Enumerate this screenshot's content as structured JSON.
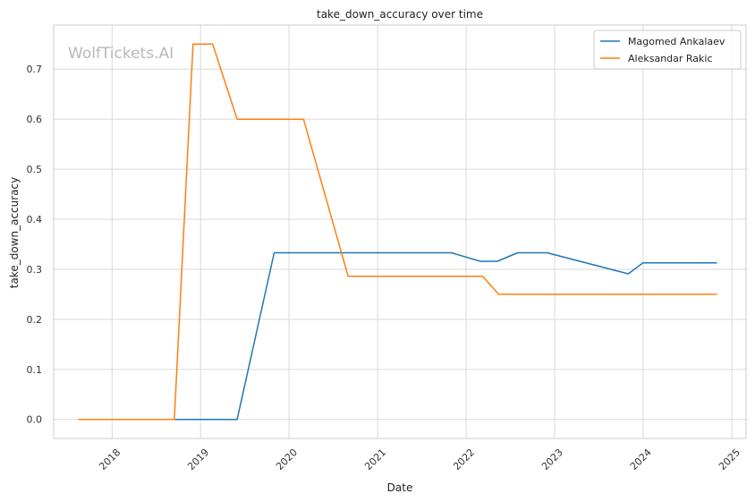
{
  "watermark": "WolfTickets.AI",
  "chart_data": {
    "type": "line",
    "title": "take_down_accuracy over time",
    "xlabel": "Date",
    "ylabel": "take_down_accuracy",
    "x_axis_type": "date",
    "xlim": [
      "2017-05-05",
      "2025-03-01"
    ],
    "ylim": [
      -0.038,
      0.788
    ],
    "x_ticks": [
      "2018",
      "2019",
      "2020",
      "2021",
      "2022",
      "2023",
      "2024",
      "2025"
    ],
    "y_ticks": [
      "0.0",
      "0.1",
      "0.2",
      "0.3",
      "0.4",
      "0.5",
      "0.6",
      "0.7"
    ],
    "grid": true,
    "legend_position": "top-right",
    "series": [
      {
        "name": "Magomed Ankalaev",
        "color": "#1f77b4",
        "points": [
          [
            "2018-03-01",
            0.0
          ],
          [
            "2019-06-01",
            0.0
          ],
          [
            "2019-11-01",
            0.333
          ],
          [
            "2021-11-01",
            0.333
          ],
          [
            "2022-03-01",
            0.316
          ],
          [
            "2022-05-10",
            0.316
          ],
          [
            "2022-08-01",
            0.333
          ],
          [
            "2022-12-01",
            0.333
          ],
          [
            "2023-11-01",
            0.291
          ],
          [
            "2024-01-01",
            0.313
          ],
          [
            "2024-11-01",
            0.313
          ]
        ]
      },
      {
        "name": "Aleksandar Rakic",
        "color": "#ff7f0e",
        "points": [
          [
            "2017-08-15",
            0.0
          ],
          [
            "2018-09-15",
            0.0
          ],
          [
            "2018-12-01",
            0.75
          ],
          [
            "2019-02-20",
            0.75
          ],
          [
            "2019-06-01",
            0.6
          ],
          [
            "2020-03-01",
            0.6
          ],
          [
            "2020-09-01",
            0.286
          ],
          [
            "2022-03-10",
            0.286
          ],
          [
            "2022-05-15",
            0.25
          ],
          [
            "2024-11-01",
            0.25
          ]
        ]
      }
    ]
  }
}
